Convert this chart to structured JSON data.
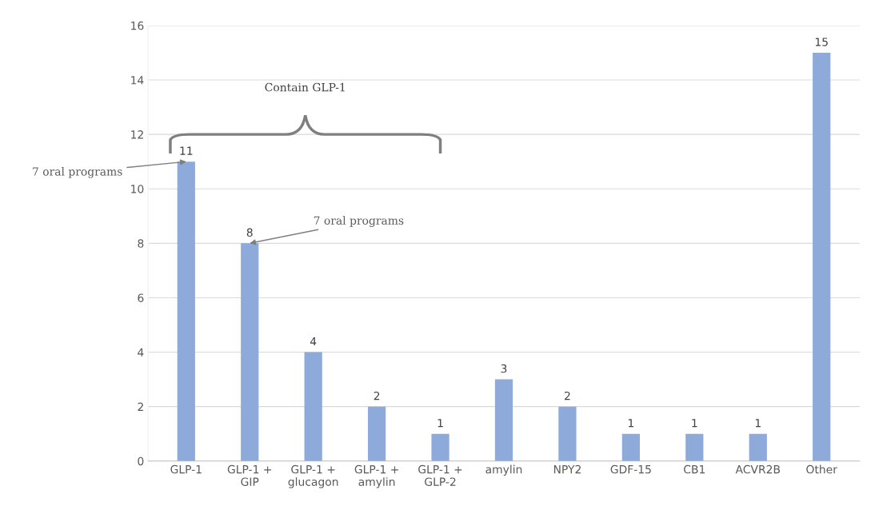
{
  "chart_data": {
    "type": "bar",
    "categories": [
      "GLP-1",
      "GLP-1 +\nGIP",
      "GLP-1 +\nglucagon",
      "GLP-1 +\namylin",
      "GLP-1 +\nGLP-2",
      "amylin",
      "NPY2",
      "GDF-15",
      "CB1",
      "ACVR2B",
      "Other"
    ],
    "values": [
      11,
      8,
      4,
      2,
      1,
      3,
      2,
      1,
      1,
      1,
      15
    ],
    "color": "#8eaadb",
    "ylim": [
      0,
      16
    ],
    "yticks": [
      0,
      2,
      4,
      6,
      8,
      10,
      12,
      14,
      16
    ],
    "grid": "y",
    "data_labels": true,
    "annotations": [
      "Contain GLP-1",
      {
        "text": "7 oral programs",
        "x": "GLP-1",
        "y": 11
      },
      {
        "text": "7 oral programs",
        "x": "GLP-1 +\nGIP",
        "y": 8
      }
    ]
  }
}
